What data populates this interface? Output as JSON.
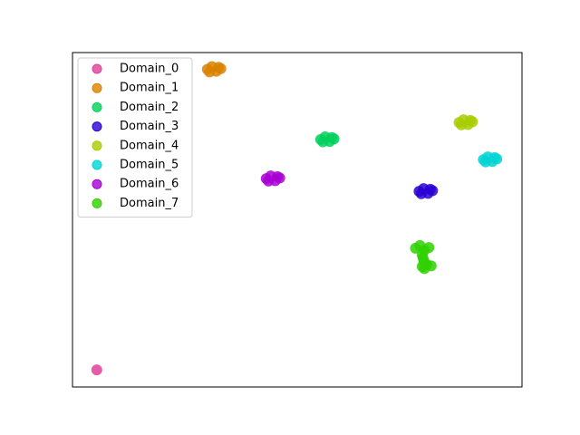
{
  "chart_data": {
    "type": "scatter",
    "xlim": [
      0,
      100
    ],
    "ylim": [
      0,
      100
    ],
    "grid": false,
    "legend": "upper left",
    "series": [
      {
        "name": "Domain_0",
        "color": "#e0409a",
        "x": [
          5.4
        ],
        "y": [
          5.1
        ]
      },
      {
        "name": "Domain_1",
        "color": "#d98200",
        "x": [
          30.0,
          31.0,
          32.0,
          33.0,
          30.5,
          32.5
        ],
        "y": [
          95.0,
          95.8,
          94.4,
          95.2,
          94.2,
          95.6
        ]
      },
      {
        "name": "Domain_2",
        "color": "#00d15a",
        "x": [
          55.2,
          56.2,
          57.2,
          58.2,
          55.7,
          57.7
        ],
        "y": [
          74.0,
          74.8,
          73.4,
          74.2,
          73.3,
          74.6
        ]
      },
      {
        "name": "Domain_3",
        "color": "#2a00d6",
        "x": [
          77.1,
          78.1,
          79.1,
          80.1,
          77.6,
          79.6
        ],
        "y": [
          58.5,
          59.3,
          57.9,
          58.7,
          57.8,
          59.1
        ]
      },
      {
        "name": "Domain_4",
        "color": "#a8cc00",
        "x": [
          86.0,
          87.0,
          88.0,
          89.0,
          86.5,
          88.5
        ],
        "y": [
          79.1,
          79.9,
          78.5,
          79.3,
          78.4,
          79.7
        ]
      },
      {
        "name": "Domain_5",
        "color": "#00d4d4",
        "x": [
          91.4,
          92.4,
          93.4,
          94.4,
          91.9,
          93.9
        ],
        "y": [
          68.0,
          68.8,
          67.4,
          68.2,
          67.3,
          68.6
        ]
      },
      {
        "name": "Domain_6",
        "color": "#a800d4",
        "x": [
          43.1,
          44.1,
          45.1,
          46.1,
          43.6,
          45.6
        ],
        "y": [
          62.3,
          63.1,
          61.7,
          62.5,
          61.6,
          62.9
        ]
      },
      {
        "name": "Domain_7",
        "color": "#2fd100",
        "x": [
          76.3,
          77.3,
          78.3,
          79.3,
          77.8,
          78.0,
          78.2,
          77.8,
          78.8,
          79.8,
          78.3
        ],
        "y": [
          41.5,
          42.3,
          40.9,
          41.7,
          39.5,
          38.5,
          37.5,
          36.0,
          36.6,
          36.2,
          35.4
        ]
      }
    ]
  }
}
